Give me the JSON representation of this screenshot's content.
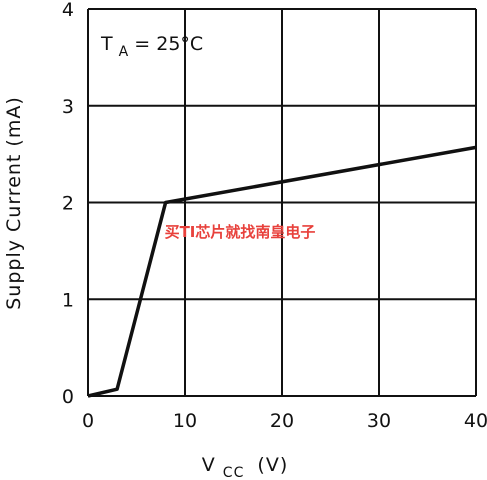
{
  "chart_data": {
    "type": "line",
    "title": "",
    "xlabel": {
      "main": "V",
      "sub": "CC",
      "unit": "(V)"
    },
    "ylabel": "Supply Current (mA)",
    "xlim": [
      0,
      40
    ],
    "ylim": [
      0,
      4
    ],
    "x_ticks": [
      "0",
      "10",
      "20",
      "30",
      "40"
    ],
    "y_ticks": [
      "0",
      "1",
      "2",
      "3",
      "4"
    ],
    "grid": true,
    "annotation": {
      "main": "T",
      "sub": "A",
      "rest": " = 25°C"
    },
    "series": [
      {
        "x": [
          0,
          3,
          8,
          40
        ],
        "y": [
          0,
          0.07,
          2.0,
          2.57
        ]
      }
    ]
  },
  "watermark": "买TI芯片就找南皇电子",
  "colors": {
    "line": "#111111",
    "grid": "#111111",
    "watermark": "#e8413c"
  }
}
